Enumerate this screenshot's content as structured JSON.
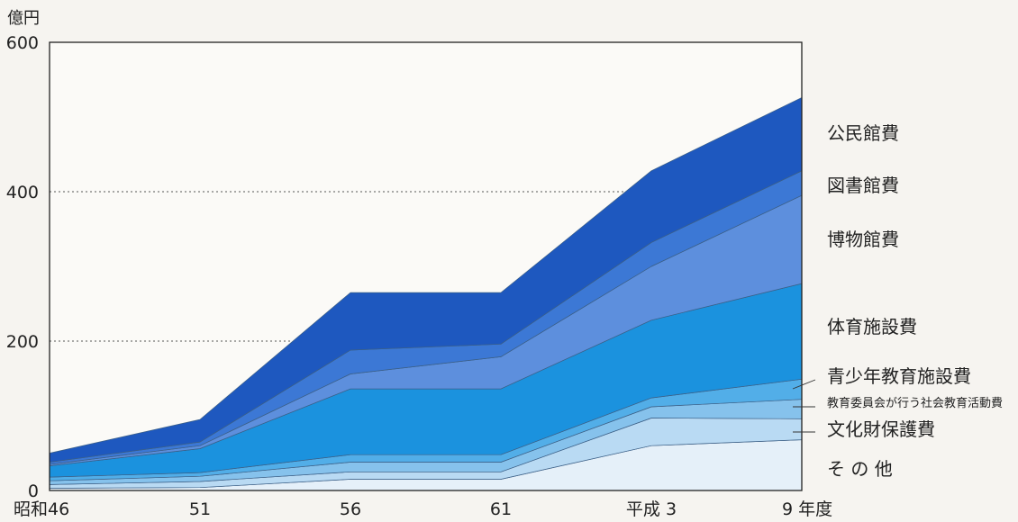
{
  "chart_data": {
    "type": "area",
    "stacked": true,
    "unit": "億円",
    "categories": [
      "昭和46",
      "51",
      "56",
      "61",
      "平成 3",
      "9 年度"
    ],
    "ylim": [
      0,
      600
    ],
    "yticks": [
      0,
      200,
      400,
      600
    ],
    "grid": {
      "y_dotted": [
        200,
        400
      ]
    },
    "legend_placement": "right",
    "series": [
      {
        "name": "そ の 他",
        "values": [
          3,
          4,
          15,
          15,
          60,
          68
        ],
        "color": "#e5f0f9"
      },
      {
        "name": "文化財保護費",
        "values": [
          5,
          8,
          10,
          10,
          37,
          28
        ],
        "color": "#b9daf3"
      },
      {
        "name": "教育委員会が行う社会教育活動費",
        "values": [
          5,
          7,
          13,
          13,
          15,
          26
        ],
        "color": "#86c2ec"
      },
      {
        "name": "青少年教育施設費",
        "values": [
          5,
          5,
          10,
          10,
          12,
          27
        ],
        "color": "#52aee8"
      },
      {
        "name": "体育施設費",
        "values": [
          15,
          32,
          88,
          88,
          104,
          128
        ],
        "color": "#1b92de"
      },
      {
        "name": "博物館費",
        "values": [
          2,
          4,
          20,
          43,
          72,
          118
        ],
        "color": "#5d8fdd"
      },
      {
        "name": "図書館費",
        "values": [
          3,
          5,
          32,
          17,
          32,
          33
        ],
        "color": "#3c78d5"
      },
      {
        "name": "公民館費",
        "values": [
          12,
          30,
          77,
          69,
          96,
          98
        ],
        "color": "#1e58bf"
      }
    ]
  }
}
